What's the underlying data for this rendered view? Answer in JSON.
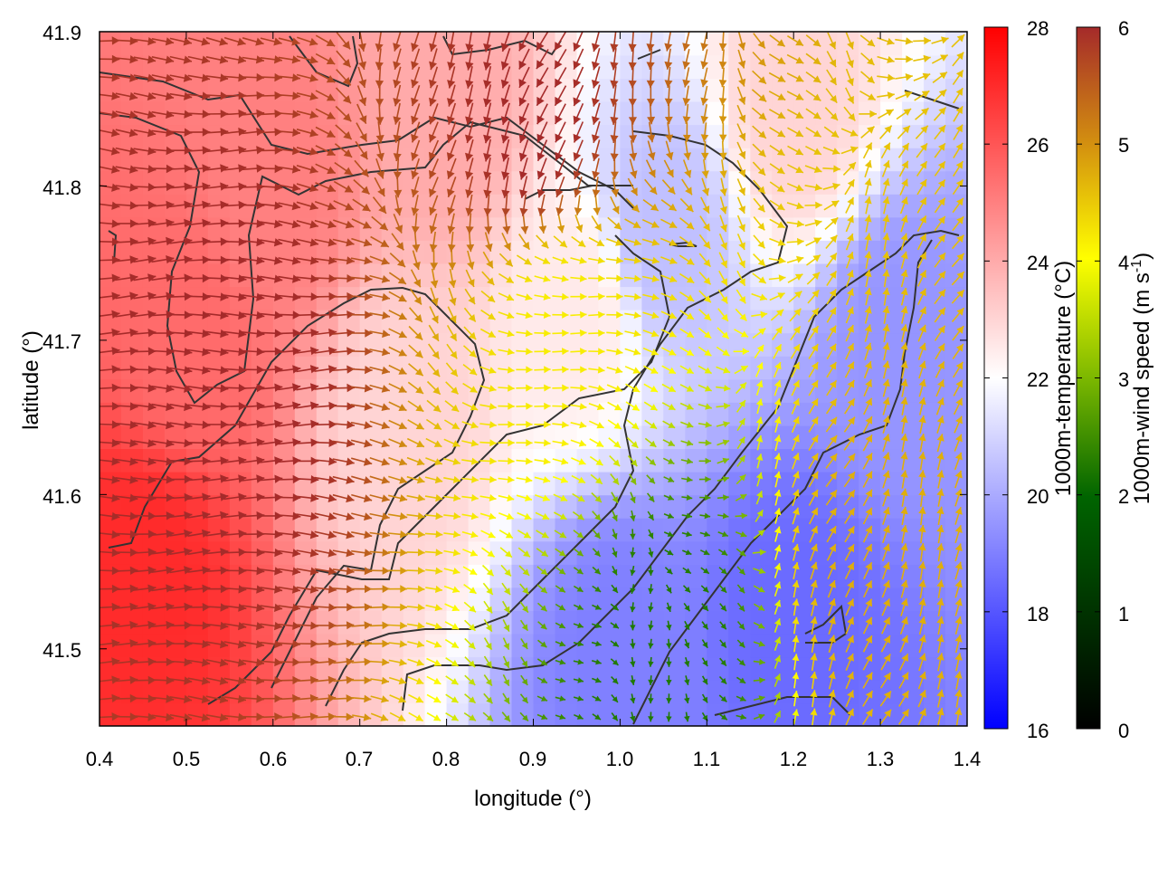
{
  "chart_data": {
    "type": "heatmap",
    "subtype": "vector-field-over-colored-map",
    "xlabel": "longitude (°)",
    "ylabel": "latitude (°)",
    "xlim": [
      0.4,
      1.4
    ],
    "ylim": [
      41.45,
      41.9
    ],
    "x_ticks": [
      "0.4",
      "0.5",
      "0.6",
      "0.7",
      "0.8",
      "0.9",
      "1.0",
      "1.1",
      "1.2",
      "1.3",
      "1.4"
    ],
    "y_ticks": [
      "41.5",
      "41.6",
      "41.7",
      "41.8",
      "41.9"
    ],
    "grid": false,
    "legend": "none",
    "colorbars": [
      {
        "label": "1000m-temperature (°C)",
        "range": [
          16,
          28
        ],
        "ticks": [
          "16",
          "18",
          "20",
          "22",
          "24",
          "26",
          "28"
        ],
        "palette": [
          "#0000ff",
          "#8080ff",
          "#ffffff",
          "#ff8080",
          "#ff0000"
        ]
      },
      {
        "label_main": "1000m-wind speed (m s",
        "label_sup": "-1",
        "label_end": ")",
        "range": [
          0,
          6
        ],
        "ticks": [
          "0",
          "1",
          "2",
          "3",
          "4",
          "5",
          "6"
        ],
        "palette": [
          "#000000",
          "#006400",
          "#7cb800",
          "#ffff00",
          "#d4920f",
          "#a52a2a"
        ]
      }
    ],
    "temperature_regions": [
      {
        "lon": 0.45,
        "lat": 41.55,
        "value": 27.0
      },
      {
        "lon": 0.5,
        "lat": 41.7,
        "value": 25.5
      },
      {
        "lon": 0.6,
        "lat": 41.8,
        "value": 25.0
      },
      {
        "lon": 0.75,
        "lat": 41.65,
        "value": 23.0
      },
      {
        "lon": 0.95,
        "lat": 41.72,
        "value": 22.5
      },
      {
        "lon": 1.05,
        "lat": 41.77,
        "value": 20.5
      },
      {
        "lon": 1.0,
        "lat": 41.5,
        "value": 19.0
      },
      {
        "lon": 1.2,
        "lat": 41.52,
        "value": 18.5
      },
      {
        "lon": 1.32,
        "lat": 41.7,
        "value": 19.5
      },
      {
        "lon": 1.2,
        "lat": 41.85,
        "value": 23.0
      },
      {
        "lon": 0.8,
        "lat": 41.85,
        "value": 24.0
      }
    ],
    "wind_regimes": [
      {
        "region": "west",
        "lon_range": [
          0.4,
          0.7
        ],
        "speed": 6.0,
        "direction_deg": 90
      },
      {
        "region": "north",
        "lat_range": [
          41.78,
          41.9
        ],
        "speed": 6.0,
        "direction_deg": 200
      },
      {
        "region": "central-yellow",
        "lon": 0.93,
        "lat": 41.71,
        "speed": 3.8,
        "direction_deg": 100
      },
      {
        "region": "southeast-calm",
        "lon": 1.05,
        "lat": 41.5,
        "speed": 1.5,
        "direction_deg": 150
      },
      {
        "region": "east",
        "lon": 1.3,
        "lat": 41.55,
        "speed": 4.5,
        "direction_deg": 20
      }
    ]
  }
}
